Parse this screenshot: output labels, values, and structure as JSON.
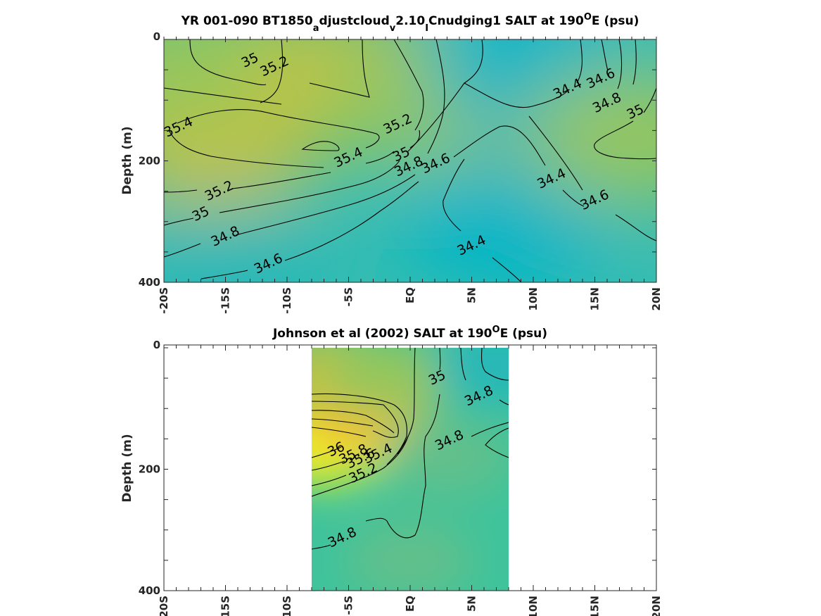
{
  "chart_data": [
    {
      "type": "heatmap",
      "title_parts": [
        "YR 001-090 BT1850",
        "a",
        "djustcloud",
        "v",
        "2.10",
        "I",
        "Cnudging1 SALT at 190",
        "O",
        "E (psu)"
      ],
      "ylabel": "Depth (m)",
      "xlabel": "",
      "x_ticks": [
        "-20S",
        "-15S",
        "-10S",
        "-5S",
        "EQ",
        "5N",
        "10N",
        "15N",
        "20N"
      ],
      "x_tick_values": [
        -20,
        -15,
        -10,
        -5,
        0,
        5,
        10,
        15,
        20
      ],
      "y_ticks": [
        "0",
        "200",
        "400"
      ],
      "y_tick_values": [
        0,
        200,
        400
      ],
      "xlim": [
        -20,
        20
      ],
      "ylim": [
        0,
        400
      ],
      "y_reversed": true,
      "data_extent_x": [
        -20,
        20
      ],
      "colormap": [
        "#00b5c8",
        "#25b8b8",
        "#62c08b",
        "#96c65c",
        "#c5c23e",
        "#f0bd35",
        "#ffc133",
        "#f5f51b"
      ],
      "fields": [
        {
          "x": -16,
          "y": 170,
          "value": 35.45
        },
        {
          "x": -12,
          "y": 40,
          "value": 35.1
        },
        {
          "x": -18,
          "y": 40,
          "value": 34.95
        },
        {
          "x": -4,
          "y": 60,
          "value": 35.25
        },
        {
          "x": 1,
          "y": 100,
          "value": 35.1
        },
        {
          "x": 10,
          "y": 40,
          "value": 34.3
        },
        {
          "x": 8,
          "y": 300,
          "value": 34.35
        },
        {
          "x": 18,
          "y": 160,
          "value": 35.05
        },
        {
          "x": -15,
          "y": 380,
          "value": 34.6
        }
      ],
      "contours": [
        {
          "level": "35",
          "label_at": [
            -13,
            35
          ]
        },
        {
          "level": "35.2",
          "label_at": [
            -11,
            45
          ]
        },
        {
          "level": "35.4",
          "label_at": [
            -18.8,
            145
          ]
        },
        {
          "level": "35.4",
          "label_at": [
            -5,
            195
          ]
        },
        {
          "level": "35.2",
          "label_at": [
            -1,
            140
          ]
        },
        {
          "level": "35",
          "label_at": [
            -0.7,
            190
          ]
        },
        {
          "level": "34.8",
          "label_at": [
            -0.1,
            210
          ]
        },
        {
          "level": "34.6",
          "label_at": [
            2.1,
            205
          ]
        },
        {
          "level": "34.4",
          "label_at": [
            12.8,
            82
          ]
        },
        {
          "level": "34.6",
          "label_at": [
            15.5,
            65
          ]
        },
        {
          "level": "34.8",
          "label_at": [
            16,
            105
          ]
        },
        {
          "level": "35",
          "label_at": [
            18.3,
            120
          ]
        },
        {
          "level": "35.2",
          "label_at": [
            -15.5,
            250
          ]
        },
        {
          "level": "35",
          "label_at": [
            -17,
            288
          ]
        },
        {
          "level": "34.8",
          "label_at": [
            -15,
            325
          ]
        },
        {
          "level": "34.6",
          "label_at": [
            -11.5,
            370
          ]
        },
        {
          "level": "34.4",
          "label_at": [
            5,
            340
          ]
        },
        {
          "level": "34.4",
          "label_at": [
            11.5,
            230
          ]
        },
        {
          "level": "34.6",
          "label_at": [
            15,
            265
          ]
        }
      ]
    },
    {
      "type": "heatmap",
      "title_parts": [
        "Johnson et al (2002) SALT at 190",
        "O",
        "E (psu)"
      ],
      "ylabel": "Depth (m)",
      "xlabel": "",
      "x_ticks": [
        "-20S",
        "-15S",
        "-10S",
        "-5S",
        "EQ",
        "5N",
        "10N",
        "15N",
        "20N"
      ],
      "x_tick_values": [
        -20,
        -15,
        -10,
        -5,
        0,
        5,
        10,
        15,
        20
      ],
      "y_ticks": [
        "0",
        "200",
        "400"
      ],
      "y_tick_values": [
        0,
        200,
        400
      ],
      "xlim": [
        -20,
        20
      ],
      "ylim": [
        0,
        400
      ],
      "y_reversed": true,
      "data_extent_x": [
        -8,
        8
      ],
      "colormap": [
        "#00b5c8",
        "#25b8b8",
        "#62c08b",
        "#96c65c",
        "#c5c23e",
        "#f0bd35",
        "#ffc133",
        "#f5f51b"
      ],
      "fields": [
        {
          "x": -7,
          "y": 160,
          "value": 36.1
        },
        {
          "x": -4,
          "y": 110,
          "value": 35.5
        },
        {
          "x": -6,
          "y": 40,
          "value": 35.3
        },
        {
          "x": -2,
          "y": 50,
          "value": 35.1
        },
        {
          "x": 3,
          "y": 180,
          "value": 34.85
        },
        {
          "x": 7,
          "y": 30,
          "value": 34.5
        },
        {
          "x": 0,
          "y": 350,
          "value": 34.85
        }
      ],
      "contours": [
        {
          "level": "35",
          "label_at": [
            2.2,
            50
          ]
        },
        {
          "level": "34.8",
          "label_at": [
            5.6,
            80
          ]
        },
        {
          "level": "34.8",
          "label_at": [
            3.2,
            153
          ]
        },
        {
          "level": "36",
          "label_at": [
            -6,
            168
          ]
        },
        {
          "level": "35.8",
          "label_at": [
            -4.6,
            176
          ]
        },
        {
          "level": "35.6",
          "label_at": [
            -4,
            183
          ]
        },
        {
          "level": "35.4",
          "label_at": [
            -2.6,
            175
          ]
        },
        {
          "level": "35.2",
          "label_at": [
            -3.8,
            207
          ]
        },
        {
          "level": "34.8",
          "label_at": [
            -5.5,
            313
          ]
        }
      ]
    }
  ]
}
